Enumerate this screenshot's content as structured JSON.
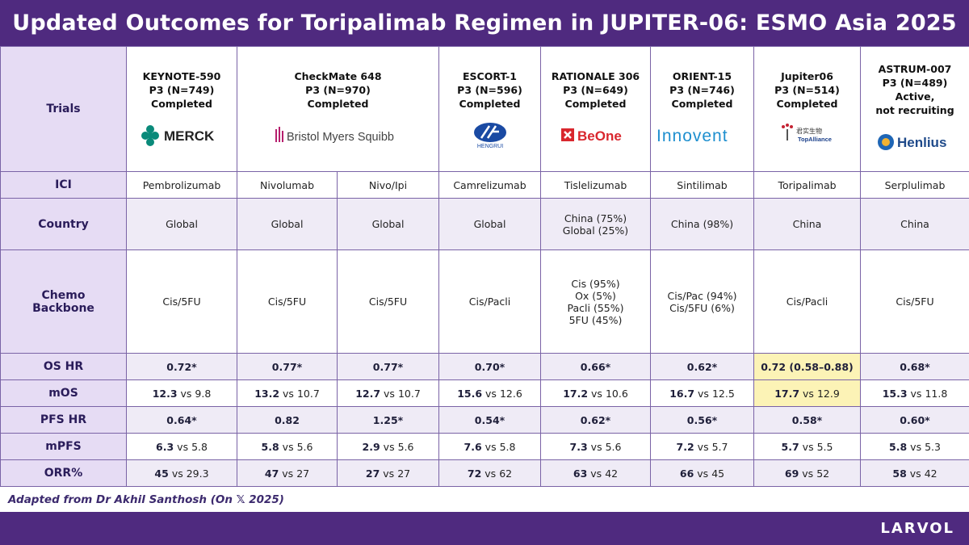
{
  "title": "Updated Outcomes for Toripalimab Regimen in JUPITER-06: ESMO Asia 2025",
  "colors": {
    "header_bg": "#4f2a7f",
    "label_bg": "#e6dcf4",
    "highlight": "#fcf3b6"
  },
  "row_labels": {
    "trials": "Trials",
    "ici": "ICI",
    "country": "Country",
    "chemo_line1": "Chemo",
    "chemo_line2": "Backbone",
    "os_hr": "OS HR",
    "mos": "mOS",
    "pfs_hr": "PFS HR",
    "mpfs": "mPFS",
    "orr": "ORR%"
  },
  "trials": [
    {
      "name": "KEYNOTE-590",
      "design": "P3 (N=749)",
      "status_line1": "Completed",
      "status_line2": "",
      "logo_text": "MERCK"
    },
    {
      "name": "CheckMate 648",
      "design": "P3 (N=970)",
      "status_line1": "Completed",
      "status_line2": "",
      "logo_text": "Bristol Myers Squibb"
    },
    {
      "name": "ESCORT-1",
      "design": "P3 (N=596)",
      "status_line1": "Completed",
      "status_line2": "",
      "logo_text": "HENGRUI"
    },
    {
      "name": "RATIONALE 306",
      "design": "P3 (N=649)",
      "status_line1": "Completed",
      "status_line2": "",
      "logo_text": "BeOne"
    },
    {
      "name": "ORIENT-15",
      "design": "P3 (N=746)",
      "status_line1": "Completed",
      "status_line2": "",
      "logo_text": "Innovent"
    },
    {
      "name": "Jupiter06",
      "design": "P3 (N=514)",
      "status_line1": "Completed",
      "status_line2": "",
      "logo_text": "TopAlliance",
      "logo_cn": "君实生物"
    },
    {
      "name": "ASTRUM-007",
      "design": "P3 (N=489)",
      "status_line1": "Active,",
      "status_line2": "not recruiting",
      "logo_text": "Henlius"
    }
  ],
  "arms": [
    {
      "ici": "Pembrolizumab",
      "country": [
        "Global"
      ],
      "chemo": [
        "Cis/5FU"
      ],
      "os_hr": "0.72*",
      "mos_a": "12.3",
      "mos_b": "9.8",
      "pfs_hr": "0.64*",
      "mpfs_a": "6.3",
      "mpfs_b": "5.8",
      "orr_a": "45",
      "orr_b": "29.3"
    },
    {
      "ici": "Nivolumab",
      "country": [
        "Global"
      ],
      "chemo": [
        "Cis/5FU"
      ],
      "os_hr": "0.77*",
      "mos_a": "13.2",
      "mos_b": "10.7",
      "pfs_hr": "0.82",
      "mpfs_a": "5.8",
      "mpfs_b": "5.6",
      "orr_a": "47",
      "orr_b": "27"
    },
    {
      "ici": "Nivo/Ipi",
      "country": [
        "Global"
      ],
      "chemo": [
        "Cis/5FU"
      ],
      "os_hr": "0.77*",
      "mos_a": "12.7",
      "mos_b": "10.7",
      "pfs_hr": "1.25*",
      "mpfs_a": "2.9",
      "mpfs_b": "5.6",
      "orr_a": "27",
      "orr_b": "27"
    },
    {
      "ici": "Camrelizumab",
      "country": [
        "Global"
      ],
      "chemo": [
        "Cis/Pacli"
      ],
      "os_hr": "0.70*",
      "mos_a": "15.6",
      "mos_b": "12.6",
      "pfs_hr": "0.54*",
      "mpfs_a": "7.6",
      "mpfs_b": "5.8",
      "orr_a": "72",
      "orr_b": "62"
    },
    {
      "ici": "Tislelizumab",
      "country": [
        "China (75%)",
        "Global (25%)"
      ],
      "chemo": [
        "Cis (95%)",
        "Ox (5%)",
        "Pacli (55%)",
        "5FU (45%)"
      ],
      "os_hr": "0.66*",
      "mos_a": "17.2",
      "mos_b": "10.6",
      "pfs_hr": "0.62*",
      "mpfs_a": "7.3",
      "mpfs_b": "5.6",
      "orr_a": "63",
      "orr_b": "42"
    },
    {
      "ici": "Sintilimab",
      "country": [
        "China (98%)"
      ],
      "chemo": [
        "Cis/Pac (94%)",
        "Cis/5FU (6%)"
      ],
      "os_hr": "0.62*",
      "mos_a": "16.7",
      "mos_b": "12.5",
      "pfs_hr": "0.56*",
      "mpfs_a": "7.2",
      "mpfs_b": "5.7",
      "orr_a": "66",
      "orr_b": "45"
    },
    {
      "ici": "Toripalimab",
      "country": [
        "China"
      ],
      "chemo": [
        "Cis/Pacli"
      ],
      "os_hr": "0.72 (0.58–0.88)",
      "mos_a": "17.7",
      "mos_b": "12.9",
      "pfs_hr": "0.58*",
      "mpfs_a": "5.7",
      "mpfs_b": "5.5",
      "orr_a": "69",
      "orr_b": "52"
    },
    {
      "ici": "Serplulimab",
      "country": [
        "China"
      ],
      "chemo": [
        "Cis/5FU"
      ],
      "os_hr": "0.68*",
      "mos_a": "15.3",
      "mos_b": "11.8",
      "pfs_hr": "0.60*",
      "mpfs_a": "5.8",
      "mpfs_b": "5.3",
      "orr_a": "58",
      "orr_b": "42"
    }
  ],
  "vs_word": "vs",
  "footnote": "Adapted from Dr Akhil Santhosh (On 𝕏 2025)",
  "brand": "LARVOL"
}
